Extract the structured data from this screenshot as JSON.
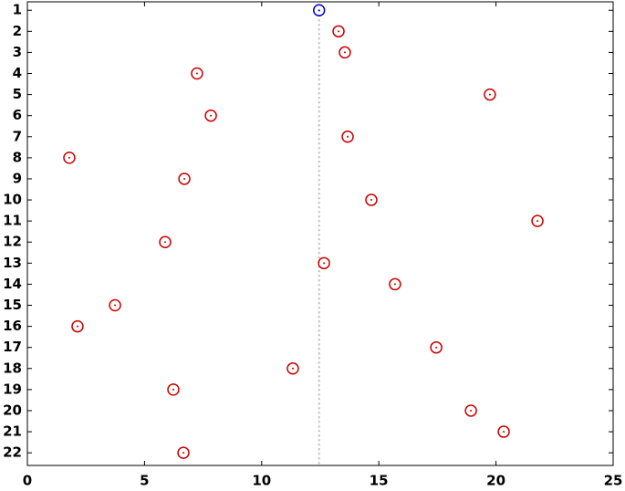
{
  "chart_data": {
    "type": "scatter",
    "series": [
      {
        "color": "#0000cc",
        "x": [
          12.45
        ],
        "y": [
          1
        ]
      },
      {
        "color": "#cc0000",
        "x": [
          13.28,
          13.55,
          7.24,
          19.74,
          7.83,
          13.67,
          1.79,
          6.7,
          14.68,
          21.77,
          5.88,
          12.66,
          15.69,
          3.74,
          2.14,
          17.45,
          11.33,
          6.23,
          18.93,
          20.33,
          6.66
        ],
        "y": [
          2,
          3,
          4,
          5,
          6,
          7,
          8,
          9,
          10,
          11,
          12,
          13,
          14,
          15,
          16,
          17,
          18,
          19,
          20,
          21,
          22
        ]
      }
    ],
    "xlim": [
      0,
      25
    ],
    "xticks": [
      0,
      5,
      10,
      15,
      20,
      25
    ],
    "ylim": [
      0.6,
      22.6
    ],
    "yticks": [
      1,
      2,
      3,
      4,
      5,
      6,
      7,
      8,
      9,
      10,
      11,
      12,
      13,
      14,
      15,
      16,
      17,
      18,
      19,
      20,
      21,
      22
    ],
    "y_reversed": true,
    "grid": false
  }
}
